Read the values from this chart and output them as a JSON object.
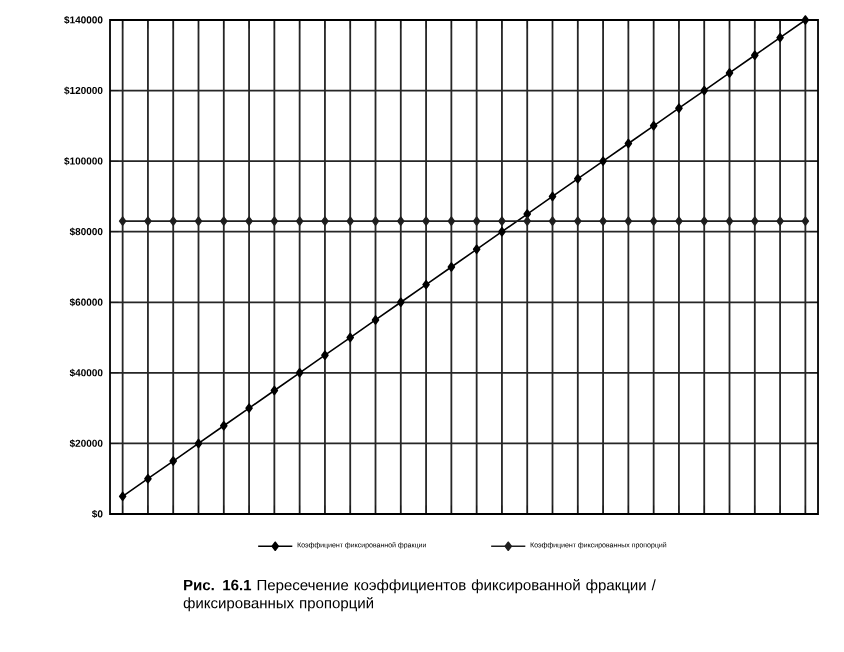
{
  "chart_data": {
    "type": "line",
    "title": "**Рис. 16.1** Пересечение коэффициентов фиксированной фракции / фиксированных пропорций",
    "categories": [
      null,
      null,
      null,
      null,
      null,
      null,
      null,
      null,
      null,
      null,
      null,
      null,
      null,
      null,
      null,
      null,
      null,
      null,
      null,
      null,
      null,
      null,
      null,
      null,
      null,
      null,
      null,
      null
    ],
    "series": [
      {
        "name": "Коэффициент фиксированной фракции",
        "color": "#000000",
        "values": [
          5000,
          10000,
          15000,
          20000,
          25000,
          30000,
          35000,
          40000,
          45000,
          50000,
          55000,
          60000,
          65000,
          70000,
          75000,
          80000,
          85000,
          90000,
          95000,
          100000,
          105000,
          110000,
          115000,
          120000,
          125000,
          130000,
          135000,
          140000
        ]
      },
      {
        "name": "Коэффициент фиксированных пропорций",
        "color": "#1f1f1f",
        "values": [
          83000,
          83000,
          83000,
          83000,
          83000,
          83000,
          83000,
          83000,
          83000,
          83000,
          83000,
          83000,
          83000,
          83000,
          83000,
          83000,
          83000,
          83000,
          83000,
          83000,
          83000,
          83000,
          83000,
          83000,
          83000,
          83000,
          83000,
          83000
        ]
      }
    ],
    "ylim": [
      0,
      140000
    ],
    "yticks": [
      {
        "value": 0,
        "label": "$0"
      },
      {
        "value": 20000,
        "label": "$20000"
      },
      {
        "value": 40000,
        "label": "$40000"
      },
      {
        "value": 60000,
        "label": "$60000"
      },
      {
        "value": 80000,
        "label": "$80000"
      },
      {
        "value": 100000,
        "label": "$100000"
      },
      {
        "value": 120000,
        "label": "$120000"
      },
      {
        "value": 140000,
        "label": "$140000"
      }
    ],
    "grid": true,
    "legend": "bottom",
    "tick_labels": "y",
    "marker": "diamond",
    "line_style": "solid"
  }
}
